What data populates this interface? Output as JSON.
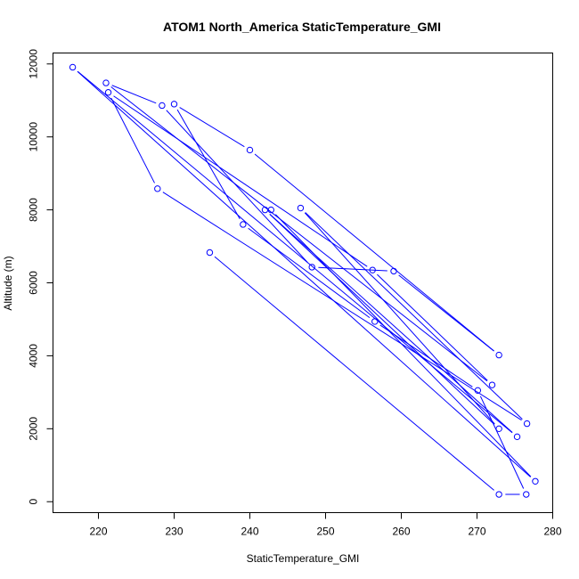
{
  "chart_data": {
    "type": "line",
    "title": "ATOM1 North_America StaticTemperature_GMI",
    "xlabel": "StaticTemperature_GMI",
    "ylabel": "Altitude (m)",
    "xlim": [
      214,
      280
    ],
    "ylim": [
      -300,
      12300
    ],
    "xticks": [
      220,
      230,
      240,
      250,
      260,
      270,
      280
    ],
    "yticks": [
      0,
      2000,
      4000,
      6000,
      8000,
      10000,
      12000
    ],
    "grid": false,
    "line_color": "#0000ff",
    "marker": "open-circle",
    "series": [
      {
        "x": [
          234.7,
          272.9,
          276.5,
          270.1,
          256.5,
          239.1,
          230.0,
          240.0,
          272.9,
          259.0,
          248.2,
          228.4,
          221.0,
          272.0,
          256.2,
          221.3,
          227.8,
          276.6,
          246.7,
          272.9,
          242.0,
          275.3,
          216.6,
          277.7,
          242.8
        ],
        "y": [
          6830,
          200,
          200,
          3050,
          4940,
          7600,
          10900,
          9640,
          4020,
          6320,
          6430,
          10860,
          11480,
          3200,
          6350,
          11220,
          8580,
          2140,
          8050,
          2000,
          8000,
          1780,
          11910,
          560,
          8000
        ]
      }
    ]
  }
}
